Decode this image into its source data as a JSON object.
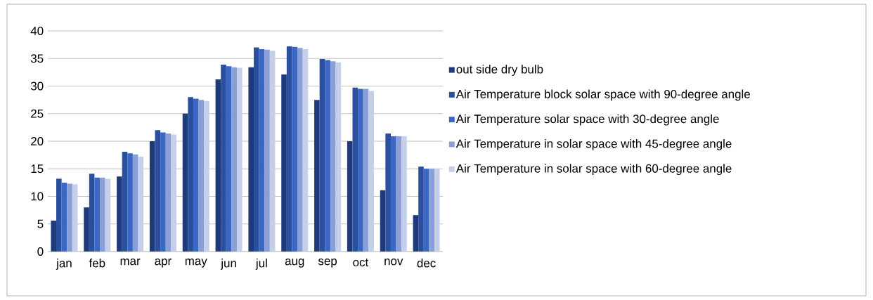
{
  "chart_data": {
    "type": "bar",
    "categories": [
      "jan",
      "feb",
      "mar",
      "apr",
      "may",
      "jun",
      "jul",
      "aug",
      "sep",
      "oct",
      "nov",
      "dec"
    ],
    "series": [
      {
        "name": "out side dry bulb",
        "color": "#1f3a7a",
        "values": [
          5.6,
          8,
          13.6,
          20,
          25,
          31.2,
          33.4,
          32.1,
          27.5,
          20,
          11.1,
          6.6
        ]
      },
      {
        "name": "Air Temperature block solar space with 90-degree angle",
        "color": "#2a4f9e",
        "values": [
          13.2,
          14.1,
          18.1,
          22,
          28,
          33.9,
          37,
          37.2,
          34.9,
          29.7,
          21.4,
          15.4
        ]
      },
      {
        "name": "Air Temperature solar space with 30-degree angle",
        "color": "#3a66c4",
        "values": [
          12.5,
          13.4,
          17.8,
          21.6,
          27.7,
          33.6,
          36.7,
          37.1,
          34.7,
          29.5,
          20.9,
          15
        ]
      },
      {
        "name": "Air Temperature in solar space with 45-degree angle",
        "color": "#8a9fd6",
        "values": [
          12.3,
          13.4,
          17.6,
          21.4,
          27.5,
          33.4,
          36.6,
          36.9,
          34.5,
          29.5,
          20.9,
          15
        ]
      },
      {
        "name": "Air Temperature in solar space with 60-degree angle",
        "color": "#c5cfea",
        "values": [
          12.2,
          13.2,
          17.2,
          21.2,
          27.3,
          33.3,
          36.4,
          36.7,
          34.3,
          29.1,
          20.9,
          15
        ]
      }
    ],
    "ylim": [
      0,
      40
    ],
    "yticks": [
      0,
      5,
      10,
      15,
      20,
      25,
      30,
      35,
      40
    ],
    "grid": "y",
    "legend": "right"
  }
}
